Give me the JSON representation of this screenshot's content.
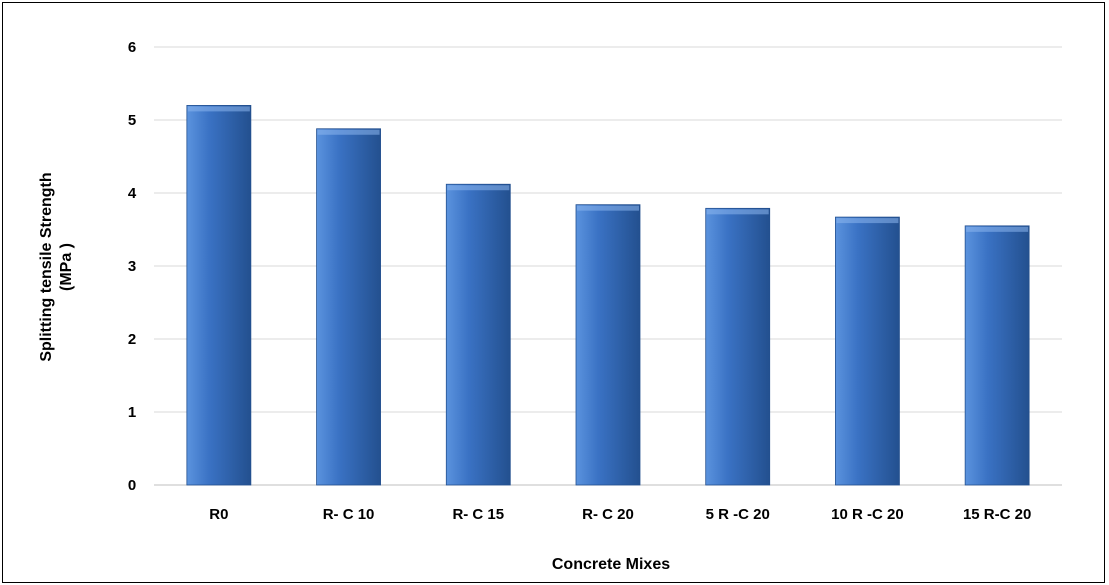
{
  "chart_data": {
    "type": "bar",
    "title": "",
    "xlabel": "Concrete Mixes",
    "ylabel_line1": "Splitting tensile Strength",
    "ylabel_line2": "(MPa )",
    "categories": [
      "R0",
      "R- C 10",
      "R- C 15",
      "R- C 20",
      "5 R -C 20",
      "10 R -C 20",
      "15 R-C 20"
    ],
    "series": [
      {
        "values": [
          5.2,
          4.88,
          4.12,
          3.84,
          3.79,
          3.67,
          3.55
        ]
      }
    ],
    "ylim": [
      0,
      6
    ],
    "yticks": [
      "0",
      "1",
      "2",
      "3",
      "4",
      "5",
      "6"
    ],
    "grid": true,
    "legend": "none",
    "colors": {
      "bar": "#3a72c4",
      "bar_light": "#5b93de",
      "bar_dark": "#23508f",
      "grid": "#d9d9d9"
    }
  }
}
